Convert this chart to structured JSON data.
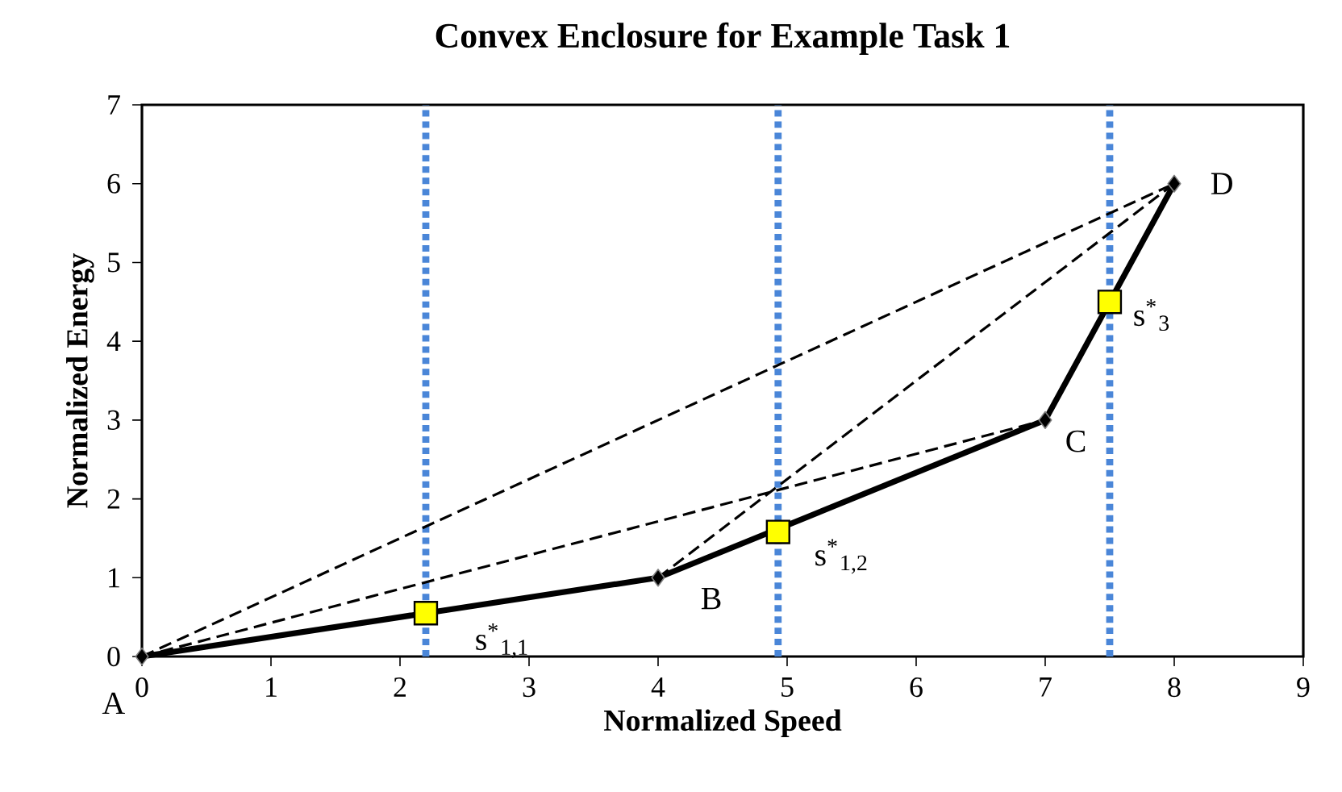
{
  "chart_data": {
    "type": "line",
    "title": "Convex Enclosure for Example Task 1",
    "xlabel": "Normalized Speed",
    "ylabel": "Normalized Energy",
    "xlim": [
      0,
      9
    ],
    "ylim": [
      0,
      7
    ],
    "xticks": [
      0,
      1,
      2,
      3,
      4,
      5,
      6,
      7,
      8,
      9
    ],
    "yticks": [
      0,
      1,
      2,
      3,
      4,
      5,
      6,
      7
    ],
    "series": [
      {
        "color": "#000000",
        "x": [
          0,
          4,
          7,
          8
        ],
        "values": [
          0,
          1,
          3,
          6
        ],
        "line_style": "solid",
        "marker": "diamond"
      },
      {
        "color": "#000000",
        "x": [
          0,
          7
        ],
        "values": [
          0,
          3
        ],
        "line_style": "dashed",
        "marker": "none"
      },
      {
        "color": "#000000",
        "x": [
          0,
          8
        ],
        "values": [
          0,
          6
        ],
        "line_style": "dashed",
        "marker": "none"
      },
      {
        "color": "#000000",
        "x": [
          4,
          8
        ],
        "values": [
          1,
          6
        ],
        "line_style": "dashed",
        "marker": "none"
      },
      {
        "type": "scatter",
        "color": "#ffff00",
        "x": [
          2.2,
          4.93,
          7.5
        ],
        "values": [
          0.55,
          1.58,
          4.5
        ],
        "marker": "square"
      }
    ],
    "ref_lines": [
      {
        "axis": "x",
        "value": 2.2,
        "color": "#4a86d8",
        "line_style": "dotted"
      },
      {
        "axis": "x",
        "value": 4.93,
        "color": "#4a86d8",
        "line_style": "dotted"
      },
      {
        "axis": "x",
        "value": 7.5,
        "color": "#4a86d8",
        "line_style": "dotted"
      }
    ],
    "annotations": [
      {
        "text": "A",
        "x": 0,
        "y": 0
      },
      {
        "text": "B",
        "x": 4,
        "y": 1
      },
      {
        "text": "C",
        "x": 7,
        "y": 3
      },
      {
        "text": "D",
        "x": 8,
        "y": 6
      },
      {
        "text": "s$^{*}$$_{1,1}$",
        "x": 2.2,
        "y": 0.55
      },
      {
        "text": "s$^{*}$$_{1,2}$",
        "x": 4.93,
        "y": 1.58
      },
      {
        "text": "s$^{*}$$_{3}$",
        "x": 7.5,
        "y": 4.5
      }
    ]
  }
}
